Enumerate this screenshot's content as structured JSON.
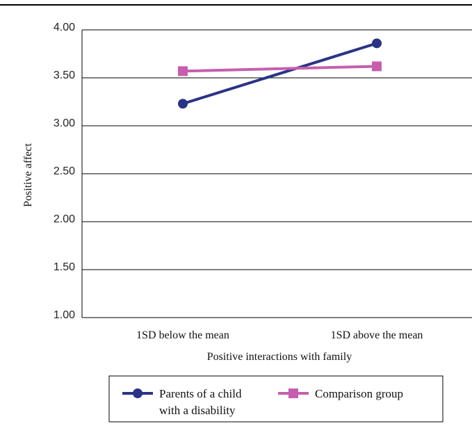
{
  "chart_data": {
    "type": "line",
    "title": "",
    "xlabel": "Positive interactions with family",
    "ylabel": "Positive affect",
    "categories": [
      "1SD below the mean",
      "1SD above the mean"
    ],
    "ylim": [
      1.0,
      4.0
    ],
    "yticks": [
      "1.00",
      "1.50",
      "2.00",
      "2.50",
      "3.00",
      "3.50",
      "4.00"
    ],
    "grid": true,
    "legend_position": "bottom",
    "series": [
      {
        "name_lines": [
          "Parents of a child",
          "with a disability"
        ],
        "values": [
          3.23,
          3.86
        ],
        "color": "#2b3384",
        "marker": "circle"
      },
      {
        "name_lines": [
          "Comparison group"
        ],
        "values": [
          3.57,
          3.62
        ],
        "color": "#c55fad",
        "marker": "square"
      }
    ]
  }
}
